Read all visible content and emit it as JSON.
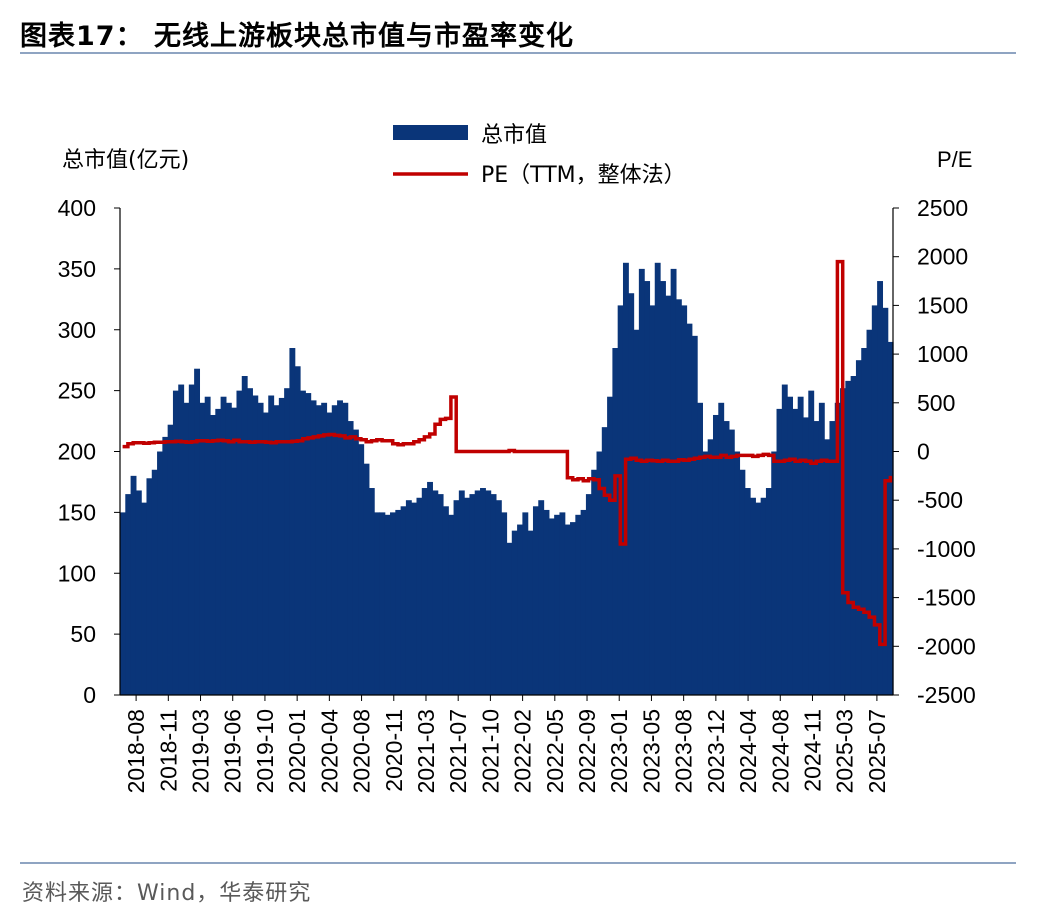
{
  "header": {
    "title": "图表17：  无线上游板块总市值与市盈率变化"
  },
  "footer": {
    "source": "资料来源：Wind，华泰研究"
  },
  "chart_data": {
    "type": "bar+line",
    "title": "无线上游板块总市值与市盈率变化",
    "left_axis": {
      "label": "总市值(亿元)",
      "range": [
        0,
        400
      ],
      "ticks": [
        "0",
        "50",
        "100",
        "150",
        "200",
        "250",
        "300",
        "350",
        "400"
      ]
    },
    "right_axis": {
      "label": "P/E",
      "range": [
        -2500,
        2500
      ],
      "ticks": [
        "-2500",
        "-2000",
        "-1500",
        "-1000",
        "-500",
        "0",
        "500",
        "1000",
        "1500",
        "2000",
        "2500"
      ]
    },
    "x_ticks": [
      "2018-08",
      "2018-11",
      "2019-03",
      "2019-06",
      "2019-10",
      "2020-01",
      "2020-04",
      "2020-08",
      "2020-11",
      "2021-03",
      "2021-07",
      "2021-10",
      "2022-02",
      "2022-05",
      "2022-09",
      "2023-01",
      "2023-05",
      "2023-08",
      "2023-12",
      "2024-04",
      "2024-08",
      "2024-11",
      "2025-03",
      "2025-07"
    ],
    "legend": [
      {
        "name": "总市值",
        "type": "bar",
        "color": "#0a3579"
      },
      {
        "name": "PE（TTM，整体法）",
        "type": "line",
        "color": "#c00000"
      }
    ],
    "series": [
      {
        "name": "总市值",
        "axis": "left",
        "points": [
          [
            0,
            150
          ],
          [
            1,
            165
          ],
          [
            2,
            180
          ],
          [
            3,
            168
          ],
          [
            4,
            158
          ],
          [
            5,
            178
          ],
          [
            6,
            185
          ],
          [
            7,
            200
          ],
          [
            8,
            212
          ],
          [
            9,
            222
          ],
          [
            10,
            250
          ],
          [
            11,
            255
          ],
          [
            12,
            240
          ],
          [
            13,
            255
          ],
          [
            14,
            268
          ],
          [
            15,
            240
          ],
          [
            16,
            245
          ],
          [
            17,
            230
          ],
          [
            18,
            235
          ],
          [
            19,
            245
          ],
          [
            20,
            240
          ],
          [
            21,
            236
          ],
          [
            22,
            250
          ],
          [
            23,
            262
          ],
          [
            24,
            252
          ],
          [
            25,
            246
          ],
          [
            26,
            240
          ],
          [
            27,
            232
          ],
          [
            28,
            246
          ],
          [
            29,
            238
          ],
          [
            30,
            244
          ],
          [
            31,
            252
          ],
          [
            32,
            285
          ],
          [
            33,
            270
          ],
          [
            34,
            250
          ],
          [
            35,
            248
          ],
          [
            36,
            242
          ],
          [
            37,
            238
          ],
          [
            38,
            240
          ],
          [
            39,
            232
          ],
          [
            40,
            238
          ],
          [
            41,
            242
          ],
          [
            42,
            240
          ],
          [
            43,
            225
          ],
          [
            44,
            218
          ],
          [
            45,
            206
          ],
          [
            46,
            190
          ],
          [
            47,
            170
          ],
          [
            48,
            150
          ],
          [
            49,
            150
          ],
          [
            50,
            148
          ],
          [
            51,
            150
          ],
          [
            52,
            152
          ],
          [
            53,
            155
          ],
          [
            54,
            160
          ],
          [
            55,
            158
          ],
          [
            56,
            162
          ],
          [
            57,
            170
          ],
          [
            58,
            175
          ],
          [
            59,
            168
          ],
          [
            60,
            165
          ],
          [
            61,
            155
          ],
          [
            62,
            148
          ],
          [
            63,
            160
          ],
          [
            64,
            168
          ],
          [
            65,
            162
          ],
          [
            66,
            165
          ],
          [
            67,
            168
          ],
          [
            68,
            170
          ],
          [
            69,
            168
          ],
          [
            70,
            165
          ],
          [
            71,
            160
          ],
          [
            72,
            150
          ],
          [
            73,
            125
          ],
          [
            74,
            135
          ],
          [
            75,
            140
          ],
          [
            76,
            150
          ],
          [
            77,
            135
          ],
          [
            78,
            155
          ],
          [
            79,
            160
          ],
          [
            80,
            152
          ],
          [
            81,
            145
          ],
          [
            82,
            148
          ],
          [
            83,
            150
          ],
          [
            84,
            140
          ],
          [
            85,
            142
          ],
          [
            86,
            148
          ],
          [
            87,
            152
          ],
          [
            88,
            165
          ],
          [
            89,
            185
          ],
          [
            90,
            200
          ],
          [
            91,
            220
          ],
          [
            92,
            245
          ],
          [
            93,
            285
          ],
          [
            94,
            320
          ],
          [
            95,
            355
          ],
          [
            96,
            330
          ],
          [
            97,
            300
          ],
          [
            98,
            350
          ],
          [
            99,
            340
          ],
          [
            100,
            320
          ],
          [
            101,
            355
          ],
          [
            102,
            340
          ],
          [
            103,
            328
          ],
          [
            104,
            350
          ],
          [
            105,
            325
          ],
          [
            106,
            320
          ],
          [
            107,
            305
          ],
          [
            108,
            295
          ],
          [
            109,
            240
          ],
          [
            110,
            200
          ],
          [
            111,
            210
          ],
          [
            112,
            230
          ],
          [
            113,
            240
          ],
          [
            114,
            225
          ],
          [
            115,
            218
          ],
          [
            116,
            200
          ],
          [
            117,
            185
          ],
          [
            118,
            170
          ],
          [
            119,
            162
          ],
          [
            120,
            158
          ],
          [
            121,
            162
          ],
          [
            122,
            170
          ],
          [
            123,
            200
          ],
          [
            124,
            235
          ],
          [
            125,
            255
          ],
          [
            126,
            245
          ],
          [
            127,
            235
          ],
          [
            128,
            245
          ],
          [
            129,
            228
          ],
          [
            130,
            250
          ],
          [
            131,
            225
          ],
          [
            132,
            240
          ],
          [
            133,
            210
          ],
          [
            134,
            225
          ],
          [
            135,
            240
          ],
          [
            136,
            252
          ],
          [
            137,
            258
          ],
          [
            138,
            262
          ],
          [
            139,
            275
          ],
          [
            140,
            285
          ],
          [
            141,
            300
          ],
          [
            142,
            320
          ],
          [
            143,
            340
          ],
          [
            144,
            318
          ],
          [
            145,
            290
          ]
        ]
      },
      {
        "name": "PE（TTM，整体法）",
        "axis": "right",
        "points": [
          [
            0,
            50
          ],
          [
            1,
            80
          ],
          [
            2,
            90
          ],
          [
            3,
            90
          ],
          [
            4,
            85
          ],
          [
            5,
            90
          ],
          [
            6,
            95
          ],
          [
            7,
            95
          ],
          [
            8,
            100
          ],
          [
            9,
            100
          ],
          [
            10,
            105
          ],
          [
            11,
            100
          ],
          [
            12,
            95
          ],
          [
            13,
            100
          ],
          [
            14,
            110
          ],
          [
            15,
            110
          ],
          [
            16,
            105
          ],
          [
            17,
            110
          ],
          [
            18,
            115
          ],
          [
            19,
            110
          ],
          [
            20,
            100
          ],
          [
            21,
            115
          ],
          [
            22,
            100
          ],
          [
            23,
            100
          ],
          [
            24,
            95
          ],
          [
            25,
            100
          ],
          [
            26,
            100
          ],
          [
            27,
            95
          ],
          [
            28,
            90
          ],
          [
            29,
            100
          ],
          [
            30,
            100
          ],
          [
            31,
            100
          ],
          [
            32,
            105
          ],
          [
            33,
            110
          ],
          [
            34,
            130
          ],
          [
            35,
            140
          ],
          [
            36,
            150
          ],
          [
            37,
            160
          ],
          [
            38,
            170
          ],
          [
            39,
            175
          ],
          [
            40,
            165
          ],
          [
            41,
            160
          ],
          [
            42,
            140
          ],
          [
            43,
            150
          ],
          [
            44,
            130
          ],
          [
            45,
            120
          ],
          [
            46,
            100
          ],
          [
            47,
            110
          ],
          [
            48,
            120
          ],
          [
            49,
            110
          ],
          [
            50,
            110
          ],
          [
            51,
            80
          ],
          [
            52,
            70
          ],
          [
            53,
            80
          ],
          [
            54,
            80
          ],
          [
            55,
            100
          ],
          [
            56,
            120
          ],
          [
            57,
            150
          ],
          [
            58,
            180
          ],
          [
            59,
            280
          ],
          [
            60,
            330
          ],
          [
            61,
            340
          ],
          [
            62,
            560
          ],
          [
            63,
            0
          ],
          [
            64,
            0
          ],
          [
            65,
            0
          ],
          [
            66,
            0
          ],
          [
            67,
            0
          ],
          [
            68,
            0
          ],
          [
            69,
            0
          ],
          [
            70,
            0
          ],
          [
            71,
            0
          ],
          [
            72,
            0
          ],
          [
            73,
            10
          ],
          [
            74,
            0
          ],
          [
            75,
            0
          ],
          [
            76,
            0
          ],
          [
            77,
            0
          ],
          [
            78,
            0
          ],
          [
            79,
            0
          ],
          [
            80,
            0
          ],
          [
            81,
            0
          ],
          [
            82,
            0
          ],
          [
            83,
            0
          ],
          [
            84,
            -270
          ],
          [
            85,
            -290
          ],
          [
            86,
            -280
          ],
          [
            87,
            -300
          ],
          [
            88,
            -280
          ],
          [
            89,
            -290
          ],
          [
            90,
            -380
          ],
          [
            91,
            -450
          ],
          [
            92,
            -500
          ],
          [
            93,
            -250
          ],
          [
            94,
            -950
          ],
          [
            95,
            -80
          ],
          [
            96,
            -70
          ],
          [
            97,
            -90
          ],
          [
            98,
            -100
          ],
          [
            99,
            -90
          ],
          [
            100,
            -95
          ],
          [
            101,
            -100
          ],
          [
            102,
            -90
          ],
          [
            103,
            -100
          ],
          [
            104,
            -100
          ],
          [
            105,
            -85
          ],
          [
            106,
            -90
          ],
          [
            107,
            -80
          ],
          [
            108,
            -70
          ],
          [
            109,
            -60
          ],
          [
            110,
            -50
          ],
          [
            111,
            -60
          ],
          [
            112,
            -60
          ],
          [
            113,
            -40
          ],
          [
            114,
            -60
          ],
          [
            115,
            -50
          ],
          [
            116,
            -40
          ],
          [
            117,
            -40
          ],
          [
            118,
            -40
          ],
          [
            119,
            -50
          ],
          [
            120,
            -40
          ],
          [
            121,
            -30
          ],
          [
            122,
            -40
          ],
          [
            123,
            -100
          ],
          [
            124,
            -100
          ],
          [
            125,
            -90
          ],
          [
            126,
            -80
          ],
          [
            127,
            -100
          ],
          [
            128,
            -90
          ],
          [
            129,
            -100
          ],
          [
            130,
            -120
          ],
          [
            131,
            -100
          ],
          [
            132,
            -90
          ],
          [
            133,
            -100
          ],
          [
            134,
            -100
          ],
          [
            135,
            1950
          ],
          [
            136,
            -1450
          ],
          [
            137,
            -1550
          ],
          [
            138,
            -1600
          ],
          [
            139,
            -1620
          ],
          [
            140,
            -1650
          ],
          [
            141,
            -1700
          ],
          [
            142,
            -1780
          ],
          [
            143,
            -1980
          ],
          [
            144,
            -300
          ],
          [
            145,
            -250
          ]
        ]
      }
    ]
  }
}
